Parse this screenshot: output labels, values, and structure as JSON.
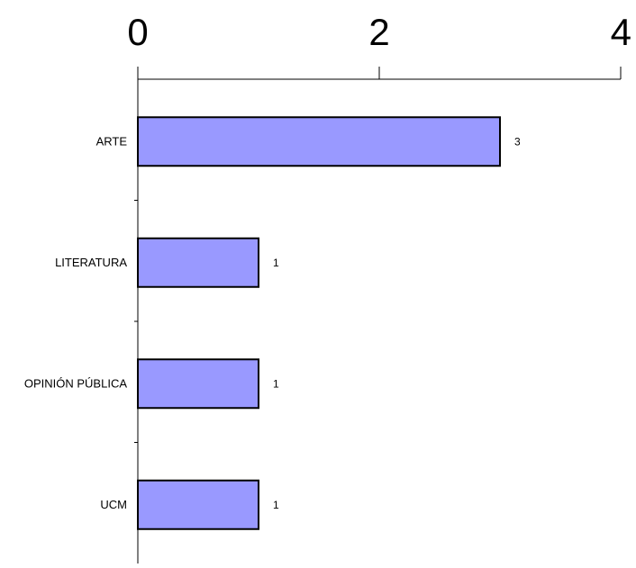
{
  "chart_data": {
    "type": "bar",
    "orientation": "horizontal",
    "categories": [
      "ARTE",
      "LITERATURA",
      "OPINIÓN PÚBLICA",
      "UCM"
    ],
    "values": [
      3,
      1,
      1,
      1
    ],
    "data_labels": [
      "3",
      "1",
      "1",
      "1"
    ],
    "xlim": [
      0,
      4
    ],
    "x_ticks": [
      0,
      2,
      4
    ],
    "x_tick_labels": [
      "0",
      "2",
      "4"
    ],
    "x_axis_position": "top",
    "grid": false,
    "legend": "none",
    "title": "",
    "xlabel": "",
    "ylabel": ""
  },
  "colors": {
    "bar_fill": "#9999ff",
    "bar_stroke": "#000000",
    "axis": "#000000",
    "text": "#000000"
  }
}
